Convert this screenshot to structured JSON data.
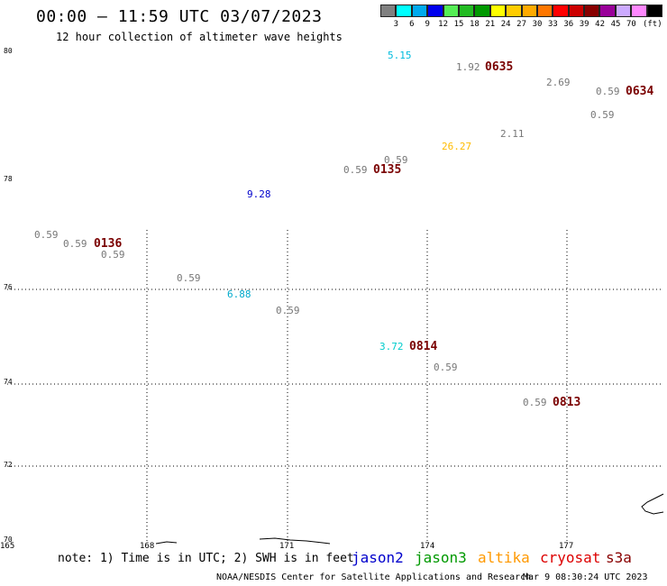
{
  "title": "00:00 — 11:59 UTC 03/07/2023",
  "subtitle": "12 hour collection of altimeter wave heights",
  "colorbar": {
    "colors": [
      "#808080",
      "#00ffff",
      "#00aaee",
      "#0000ee",
      "#55ee55",
      "#22bb22",
      "#009900",
      "#ffff00",
      "#ffcc00",
      "#ffaa00",
      "#ff7700",
      "#ff0000",
      "#cc0000",
      "#880000",
      "#990099",
      "#ccaaff",
      "#ff88ff",
      "#000000"
    ],
    "labels": [
      "3",
      "6",
      "9",
      "12",
      "15",
      "18",
      "21",
      "24",
      "27",
      "30",
      "33",
      "36",
      "39",
      "42",
      "45",
      "70",
      "(ft)"
    ]
  },
  "axes": {
    "lat_labels": [
      "80",
      "78",
      "76",
      "74",
      "72",
      "70"
    ],
    "lon_labels": [
      "165",
      "168",
      "171",
      "174",
      "177"
    ]
  },
  "observations": [
    {
      "value": "5.15",
      "color": "#00bbdd"
    },
    {
      "value": "1.92",
      "color": "#777777"
    },
    {
      "value": "2.69",
      "color": "#777777"
    },
    {
      "value": "0.59",
      "color": "#777777"
    },
    {
      "value": "0.59",
      "color": "#777777"
    },
    {
      "value": "26.27",
      "color": "#ffbb00"
    },
    {
      "value": "2.11",
      "color": "#777777"
    },
    {
      "value": "0.59",
      "color": "#777777"
    },
    {
      "value": "0.59",
      "color": "#777777"
    },
    {
      "value": "9.28",
      "color": "#0000cc"
    },
    {
      "value": "0.59",
      "color": "#777777"
    },
    {
      "value": "0.59",
      "color": "#777777"
    },
    {
      "value": "0.59",
      "color": "#777777"
    },
    {
      "value": "0.59",
      "color": "#777777"
    },
    {
      "value": "6.88",
      "color": "#00aacc"
    },
    {
      "value": "0.59",
      "color": "#777777"
    },
    {
      "value": "3.72",
      "color": "#00cccc"
    },
    {
      "value": "0.59",
      "color": "#777777"
    },
    {
      "value": "0.59",
      "color": "#777777"
    }
  ],
  "times": [
    "0635",
    "0634",
    "0135",
    "0136",
    "0814",
    "0813"
  ],
  "note": "note: 1) Time is in UTC; 2) SWH is in feet",
  "satellites": [
    {
      "name": "jason2",
      "color": "#0000cc"
    },
    {
      "name": "jason3",
      "color": "#009900"
    },
    {
      "name": "altika",
      "color": "#ff9900"
    },
    {
      "name": "cryosat",
      "color": "#dd0000"
    },
    {
      "name": "s3a",
      "color": "#880000"
    }
  ],
  "credit": "NOAA/NESDIS Center for Satellite Applications and Research",
  "timestamp": "Mar  9 08:30:24 UTC 2023"
}
